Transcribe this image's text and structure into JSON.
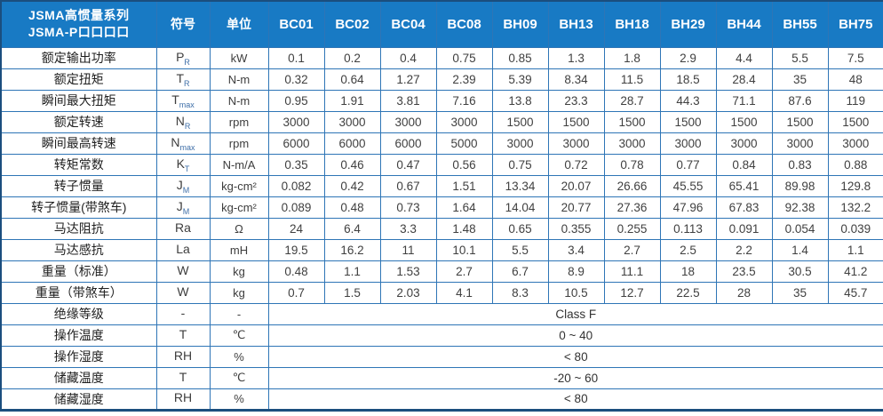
{
  "table": {
    "header": {
      "title_line1": "JSMA高惯量系列",
      "title_line2": "JSMA-P口口口口",
      "symbol_col": "符号",
      "unit_col": "单位",
      "models": [
        "BC01",
        "BC02",
        "BC04",
        "BC08",
        "BH09",
        "BH13",
        "BH18",
        "BH29",
        "BH44",
        "BH55",
        "BH75"
      ]
    },
    "rows": [
      {
        "label": "额定输出功率",
        "sym": "P",
        "sub": "R",
        "unit": "kW",
        "values": [
          "0.1",
          "0.2",
          "0.4",
          "0.75",
          "0.85",
          "1.3",
          "1.8",
          "2.9",
          "4.4",
          "5.5",
          "7.5"
        ]
      },
      {
        "label": "额定扭矩",
        "sym": "T",
        "sub": "R",
        "unit": "N-m",
        "values": [
          "0.32",
          "0.64",
          "1.27",
          "2.39",
          "5.39",
          "8.34",
          "11.5",
          "18.5",
          "28.4",
          "35",
          "48"
        ]
      },
      {
        "label": "瞬间最大扭矩",
        "sym": "T",
        "sub": "max",
        "unit": "N-m",
        "values": [
          "0.95",
          "1.91",
          "3.81",
          "7.16",
          "13.8",
          "23.3",
          "28.7",
          "44.3",
          "71.1",
          "87.6",
          "119"
        ]
      },
      {
        "label": "额定转速",
        "sym": "N",
        "sub": "R",
        "unit": "rpm",
        "values": [
          "3000",
          "3000",
          "3000",
          "3000",
          "1500",
          "1500",
          "1500",
          "1500",
          "1500",
          "1500",
          "1500"
        ]
      },
      {
        "label": "瞬间最高转速",
        "sym": "N",
        "sub": "max",
        "unit": "rpm",
        "values": [
          "6000",
          "6000",
          "6000",
          "5000",
          "3000",
          "3000",
          "3000",
          "3000",
          "3000",
          "3000",
          "3000"
        ]
      },
      {
        "label": "转矩常数",
        "sym": "K",
        "sub": "T",
        "unit": "N-m/A",
        "values": [
          "0.35",
          "0.46",
          "0.47",
          "0.56",
          "0.75",
          "0.72",
          "0.78",
          "0.77",
          "0.84",
          "0.83",
          "0.88"
        ]
      },
      {
        "label": "转子惯量",
        "sym": "J",
        "sub": "M",
        "unit": "kg-cm²",
        "values": [
          "0.082",
          "0.42",
          "0.67",
          "1.51",
          "13.34",
          "20.07",
          "26.66",
          "45.55",
          "65.41",
          "89.98",
          "129.8"
        ]
      },
      {
        "label": "转子惯量(带煞车)",
        "sym": "J",
        "sub": "M",
        "unit": "kg-cm²",
        "values": [
          "0.089",
          "0.48",
          "0.73",
          "1.64",
          "14.04",
          "20.77",
          "27.36",
          "47.96",
          "67.83",
          "92.38",
          "132.2"
        ]
      },
      {
        "label": "马达阻抗",
        "sym": "Ra",
        "sub": "",
        "unit": "Ω",
        "values": [
          "24",
          "6.4",
          "3.3",
          "1.48",
          "0.65",
          "0.355",
          "0.255",
          "0.113",
          "0.091",
          "0.054",
          "0.039"
        ]
      },
      {
        "label": "马达感抗",
        "sym": "La",
        "sub": "",
        "unit": "mH",
        "values": [
          "19.5",
          "16.2",
          "11",
          "10.1",
          "5.5",
          "3.4",
          "2.7",
          "2.5",
          "2.2",
          "1.4",
          "1.1"
        ]
      },
      {
        "label": "重量（标准）",
        "sym": "W",
        "sub": "",
        "unit": "kg",
        "values": [
          "0.48",
          "1.1",
          "1.53",
          "2.7",
          "6.7",
          "8.9",
          "11.1",
          "18",
          "23.5",
          "30.5",
          "41.2"
        ]
      },
      {
        "label": "重量（带煞车）",
        "sym": "W",
        "sub": "",
        "unit": "kg",
        "values": [
          "0.7",
          "1.5",
          "2.03",
          "4.1",
          "8.3",
          "10.5",
          "12.7",
          "22.5",
          "28",
          "35",
          "45.7"
        ]
      },
      {
        "label": "绝缘等级",
        "sym": "-",
        "sub": "",
        "unit": "-",
        "merged": "Class F"
      },
      {
        "label": "操作温度",
        "sym": "T",
        "sub": "",
        "unit": "℃",
        "merged": "0 ~ 40"
      },
      {
        "label": "操作湿度",
        "sym": "RH",
        "sub": "",
        "unit": "%",
        "merged": "< 80"
      },
      {
        "label": "储藏温度",
        "sym": "T",
        "sub": "",
        "unit": "℃",
        "merged": "-20 ~ 60"
      },
      {
        "label": "储藏湿度",
        "sym": "RH",
        "sub": "",
        "unit": "%",
        "merged": "< 80"
      }
    ]
  },
  "colors": {
    "header_bg": "#187ac4",
    "grid_line": "#2e75b6",
    "outer_border": "#1b4e7e",
    "header_text": "#ffffff",
    "value_text": "#404040"
  }
}
